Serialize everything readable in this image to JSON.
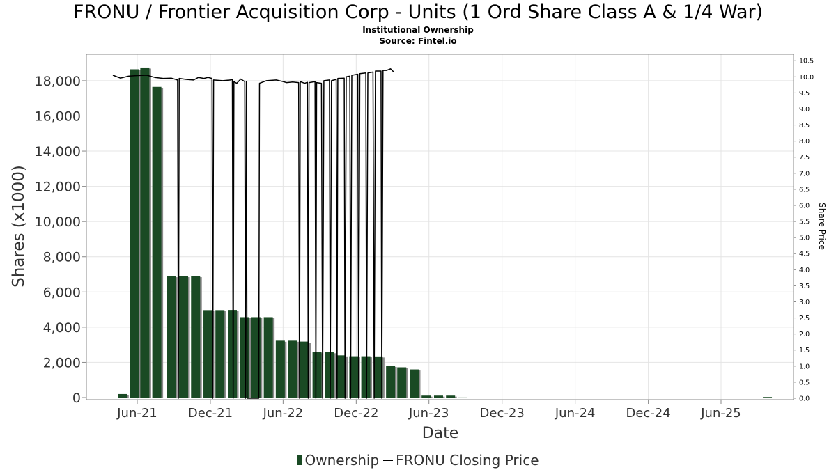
{
  "title": "FRONU / Frontier Acquisition Corp - Units (1 Ord Share Class A & 1/4 War)",
  "subtitle": "Institutional Ownership",
  "source": "Source: Fintel.io",
  "colors": {
    "bar": "#1a4a24",
    "bar_shadow": "#8a8a8a",
    "price_line": "#000000",
    "grid": "#e4e4e4"
  },
  "chart_data": {
    "type": "bar",
    "xlabel": "Date",
    "ylabel": "Shares (x1000)",
    "y2label": "Share Price",
    "ylim": [
      0,
      19500
    ],
    "y2lim": [
      0,
      10.7
    ],
    "grid": true,
    "legend_position": "bottom-center",
    "x_ticks": [
      "Jun-21",
      "Dec-21",
      "Jun-22",
      "Dec-22",
      "Jun-23",
      "Dec-23",
      "Jun-24",
      "Dec-24",
      "Jun-25"
    ],
    "y_ticks": [
      "0",
      "2,000",
      "4,000",
      "6,000",
      "8,000",
      "10,000",
      "12,000",
      "14,000",
      "16,000",
      "18,000"
    ],
    "y2_ticks": [
      "0.0",
      "0.5",
      "1.0",
      "1.5",
      "2.0",
      "2.5",
      "3.0",
      "3.5",
      "4.0",
      "4.5",
      "5.0",
      "5.5",
      "6.0",
      "6.5",
      "7.0",
      "7.5",
      "8.0",
      "8.5",
      "9.0",
      "9.5",
      "10.0",
      "10.5"
    ],
    "series": [
      {
        "name": "Ownership",
        "type": "bar",
        "x": [
          "2021-04-25",
          "2021-05-25",
          "2021-06-20",
          "2021-07-20",
          "2021-08-25",
          "2021-09-25",
          "2021-10-25",
          "2021-11-25",
          "2021-12-25",
          "2022-01-25",
          "2022-02-25",
          "2022-03-25",
          "2022-04-25",
          "2022-05-25",
          "2022-06-25",
          "2022-07-25",
          "2022-08-25",
          "2022-09-25",
          "2022-10-25",
          "2022-11-25",
          "2022-12-25",
          "2023-01-25",
          "2023-02-25",
          "2023-03-25",
          "2023-04-25",
          "2023-05-25",
          "2023-06-25",
          "2023-07-25",
          "2023-08-25",
          "2025-09-25"
        ],
        "values": [
          200,
          18650,
          18750,
          17650,
          6900,
          6900,
          6900,
          4970,
          4970,
          4980,
          4570,
          4570,
          4570,
          3230,
          3230,
          3180,
          2580,
          2580,
          2400,
          2350,
          2350,
          2340,
          1800,
          1720,
          1600,
          110,
          110,
          110,
          5,
          30
        ]
      },
      {
        "name": "FRONU Closing Price",
        "type": "line",
        "points": [
          [
            "2021-04-01",
            10.05
          ],
          [
            "2021-04-20",
            9.96
          ],
          [
            "2021-05-10",
            10.02
          ],
          [
            "2021-06-01",
            10.04
          ],
          [
            "2021-06-25",
            10.05
          ],
          [
            "2021-07-15",
            9.98
          ],
          [
            "2021-08-05",
            9.95
          ],
          [
            "2021-08-25",
            9.96
          ],
          [
            "2021-09-10",
            9.9
          ],
          [
            "2021-09-12",
            0.0
          ],
          [
            "2021-09-14",
            9.95
          ],
          [
            "2021-10-01",
            9.92
          ],
          [
            "2021-10-20",
            9.9
          ],
          [
            "2021-11-01",
            9.98
          ],
          [
            "2021-11-15",
            9.95
          ],
          [
            "2021-11-25",
            9.98
          ],
          [
            "2021-12-05",
            9.95
          ],
          [
            "2021-12-07",
            0.0
          ],
          [
            "2021-12-09",
            9.9
          ],
          [
            "2022-01-01",
            9.88
          ],
          [
            "2022-01-20",
            9.9
          ],
          [
            "2022-01-25",
            9.92
          ],
          [
            "2022-01-27",
            0.0
          ],
          [
            "2022-01-29",
            9.85
          ],
          [
            "2022-02-05",
            9.8
          ],
          [
            "2022-02-15",
            9.93
          ],
          [
            "2022-02-25",
            9.85
          ],
          [
            "2022-02-27",
            0.0
          ],
          [
            "2022-03-01",
            9.85
          ],
          [
            "2022-03-03",
            0.0
          ],
          [
            "2022-04-01",
            0.0
          ],
          [
            "2022-04-03",
            9.8
          ],
          [
            "2022-04-20",
            9.88
          ],
          [
            "2022-05-15",
            9.9
          ],
          [
            "2022-06-01",
            9.85
          ],
          [
            "2022-06-10",
            9.82
          ],
          [
            "2022-06-25",
            9.84
          ],
          [
            "2022-07-10",
            9.82
          ],
          [
            "2022-07-12",
            0.0
          ],
          [
            "2022-07-14",
            9.85
          ],
          [
            "2022-07-25",
            9.8
          ],
          [
            "2022-08-01",
            9.83
          ],
          [
            "2022-08-03",
            0.0
          ],
          [
            "2022-08-05",
            9.82
          ],
          [
            "2022-08-20",
            9.85
          ],
          [
            "2022-08-22",
            0.0
          ],
          [
            "2022-08-24",
            9.82
          ],
          [
            "2022-09-05",
            9.8
          ],
          [
            "2022-09-08",
            0.0
          ],
          [
            "2022-09-11",
            9.88
          ],
          [
            "2022-09-25",
            9.9
          ],
          [
            "2022-09-27",
            0.0
          ],
          [
            "2022-09-30",
            9.88
          ],
          [
            "2022-10-12",
            9.92
          ],
          [
            "2022-10-14",
            0.0
          ],
          [
            "2022-10-16",
            9.95
          ],
          [
            "2022-11-01",
            9.96
          ],
          [
            "2022-11-03",
            0.0
          ],
          [
            "2022-11-06",
            10.0
          ],
          [
            "2022-11-15",
            10.02
          ],
          [
            "2022-11-17",
            0.0
          ],
          [
            "2022-11-20",
            10.05
          ],
          [
            "2022-12-05",
            10.08
          ],
          [
            "2022-12-07",
            0.0
          ],
          [
            "2022-12-10",
            10.1
          ],
          [
            "2022-12-25",
            10.12
          ],
          [
            "2022-12-27",
            0.0
          ],
          [
            "2022-12-30",
            10.12
          ],
          [
            "2023-01-12",
            10.15
          ],
          [
            "2023-01-15",
            0.0
          ],
          [
            "2023-01-18",
            10.18
          ],
          [
            "2023-02-01",
            10.18
          ],
          [
            "2023-02-03",
            0.0
          ],
          [
            "2023-02-06",
            10.2
          ],
          [
            "2023-02-15",
            10.2
          ],
          [
            "2023-02-25",
            10.25
          ],
          [
            "2023-03-05",
            10.15
          ]
        ]
      }
    ]
  }
}
